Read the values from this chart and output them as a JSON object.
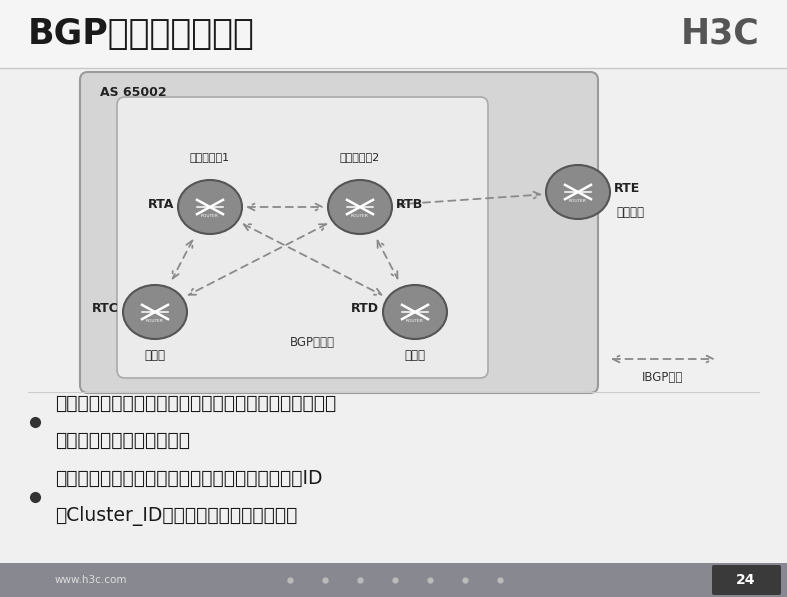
{
  "title": "BGP路由反射器冗余",
  "h3c_logo": "H3C",
  "slide_bg": "#f0f0f0",
  "content_bg": "#f0f0f0",
  "as_label": "AS 65002",
  "bullet1_line1": "在一个集群中可以配置一个以上的路由反射器，以增加网",
  "bullet1_line2": "络的可靠性和防止单点故障",
  "bullet2_line1": "一个集群中的每个路由反射器都要配置相同的集群ID",
  "bullet2_line2": "（Cluster_ID），以避免路由环路的产生",
  "legend_text": "IBGP连接",
  "bgp_group_label": "BGP反射群",
  "footer_text": "www.h3c.com",
  "page_num": "24",
  "rta_label": "路由反射器1",
  "rtb_label": "路由反射器2",
  "rtc_sublabel": "客户机",
  "rtd_sublabel": "客户机",
  "rte_sublabel": "非客户机"
}
